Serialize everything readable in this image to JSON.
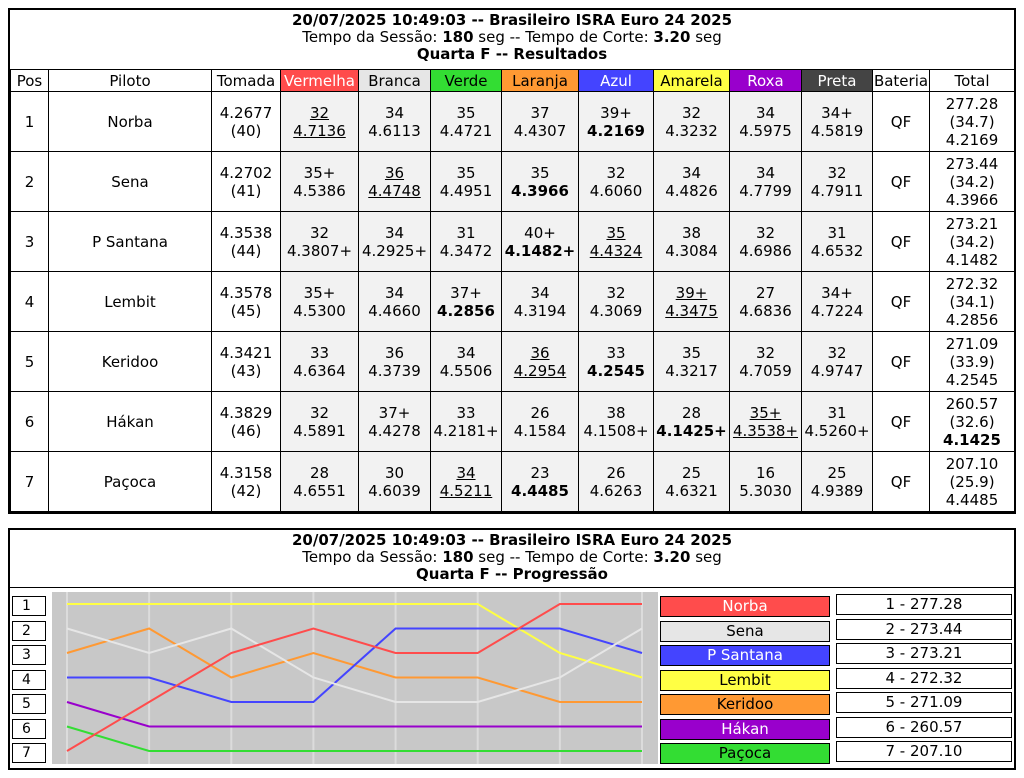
{
  "results": {
    "title": "20/07/2025 10:49:03 -- Brasileiro ISRA Euro 24 2025",
    "session_prefix": "Tempo da Sessão: ",
    "session_time": "180",
    "session_mid": " seg -- Tempo de Corte: ",
    "cut_time": "3.20",
    "session_suffix": " seg",
    "subtitle": "Quarta F -- Resultados",
    "columns": {
      "pos": "Pos",
      "pilot": "Piloto",
      "tomada": "Tomada",
      "vermelha": "Vermelha",
      "branca": "Branca",
      "verde": "Verde",
      "laranja": "Laranja",
      "azul": "Azul",
      "amarela": "Amarela",
      "roxa": "Roxa",
      "preta": "Preta",
      "bateria": "Bateria",
      "total": "Total"
    },
    "column_colors": {
      "vermelha": "#ff4c4c",
      "branca": "#e6e6e6",
      "verde": "#33dd33",
      "laranja": "#ff9933",
      "azul": "#4444ff",
      "amarela": "#ffff44",
      "roxa": "#9900cc",
      "preta": "#444444"
    },
    "rows": [
      {
        "pos": "1",
        "pilot": "Norba",
        "tomada": "4.2677",
        "tomada2": "(40)",
        "karts": [
          [
            "32",
            "4.7136",
            "u"
          ],
          [
            "34",
            "4.6113",
            ""
          ],
          [
            "35",
            "4.4721",
            ""
          ],
          [
            "37",
            "4.4307",
            ""
          ],
          [
            "39+",
            "4.2169",
            "b"
          ],
          [
            "32",
            "4.3232",
            ""
          ],
          [
            "34",
            "4.5975",
            ""
          ],
          [
            "34+",
            "4.5819",
            ""
          ]
        ],
        "bateria": "QF",
        "total": "277.28",
        "avg": "(34.7)",
        "best": "4.2169",
        "best_bold": false
      },
      {
        "pos": "2",
        "pilot": "Sena",
        "tomada": "4.2702",
        "tomada2": "(41)",
        "karts": [
          [
            "35+",
            "4.5386",
            ""
          ],
          [
            "36",
            "4.4748",
            "u"
          ],
          [
            "35",
            "4.4951",
            ""
          ],
          [
            "35",
            "4.3966",
            "b"
          ],
          [
            "32",
            "4.6060",
            ""
          ],
          [
            "34",
            "4.4826",
            ""
          ],
          [
            "34",
            "4.7799",
            ""
          ],
          [
            "32",
            "4.7911",
            ""
          ]
        ],
        "bateria": "QF",
        "total": "273.44",
        "avg": "(34.2)",
        "best": "4.3966",
        "best_bold": false
      },
      {
        "pos": "3",
        "pilot": "P Santana",
        "tomada": "4.3538",
        "tomada2": "(44)",
        "karts": [
          [
            "32",
            "4.3807+",
            ""
          ],
          [
            "34",
            "4.2925+",
            ""
          ],
          [
            "31",
            "4.3472",
            ""
          ],
          [
            "40+",
            "4.1482+",
            "b"
          ],
          [
            "35",
            "4.4324",
            "u"
          ],
          [
            "38",
            "4.3084",
            ""
          ],
          [
            "32",
            "4.6986",
            ""
          ],
          [
            "31",
            "4.6532",
            ""
          ]
        ],
        "bateria": "QF",
        "total": "273.21",
        "avg": "(34.2)",
        "best": "4.1482",
        "best_bold": false
      },
      {
        "pos": "4",
        "pilot": "Lembit",
        "tomada": "4.3578",
        "tomada2": "(45)",
        "karts": [
          [
            "35+",
            "4.5300",
            ""
          ],
          [
            "34",
            "4.4660",
            ""
          ],
          [
            "37+",
            "4.2856",
            "b"
          ],
          [
            "34",
            "4.3194",
            ""
          ],
          [
            "32",
            "4.3069",
            ""
          ],
          [
            "39+",
            "4.3475",
            "u"
          ],
          [
            "27",
            "4.6836",
            ""
          ],
          [
            "34+",
            "4.7224",
            ""
          ]
        ],
        "bateria": "QF",
        "total": "272.32",
        "avg": "(34.1)",
        "best": "4.2856",
        "best_bold": false
      },
      {
        "pos": "5",
        "pilot": "Keridoo",
        "tomada": "4.3421",
        "tomada2": "(43)",
        "karts": [
          [
            "33",
            "4.6364",
            ""
          ],
          [
            "36",
            "4.3739",
            ""
          ],
          [
            "34",
            "4.5506",
            ""
          ],
          [
            "36",
            "4.2954",
            "u"
          ],
          [
            "33",
            "4.2545",
            "b"
          ],
          [
            "35",
            "4.3217",
            ""
          ],
          [
            "32",
            "4.7059",
            ""
          ],
          [
            "32",
            "4.9747",
            ""
          ]
        ],
        "bateria": "QF",
        "total": "271.09",
        "avg": "(33.9)",
        "best": "4.2545",
        "best_bold": false
      },
      {
        "pos": "6",
        "pilot": "Hákan",
        "tomada": "4.3829",
        "tomada2": "(46)",
        "karts": [
          [
            "32",
            "4.5891",
            ""
          ],
          [
            "37+",
            "4.4278",
            ""
          ],
          [
            "33",
            "4.2181+",
            ""
          ],
          [
            "26",
            "4.1584",
            ""
          ],
          [
            "38",
            "4.1508+",
            ""
          ],
          [
            "28",
            "4.1425+",
            "b"
          ],
          [
            "35+",
            "4.3538+",
            "u"
          ],
          [
            "31",
            "4.5260+",
            ""
          ]
        ],
        "bateria": "QF",
        "total": "260.57",
        "avg": "(32.6)",
        "best": "4.1425",
        "best_bold": true
      },
      {
        "pos": "7",
        "pilot": "Paçoca",
        "tomada": "4.3158",
        "tomada2": "(42)",
        "karts": [
          [
            "28",
            "4.6551",
            ""
          ],
          [
            "30",
            "4.6039",
            ""
          ],
          [
            "34",
            "4.5211",
            "u"
          ],
          [
            "23",
            "4.4485",
            "b"
          ],
          [
            "26",
            "4.6263",
            ""
          ],
          [
            "25",
            "4.6321",
            ""
          ],
          [
            "16",
            "5.3030",
            ""
          ],
          [
            "25",
            "4.9389",
            ""
          ]
        ],
        "bateria": "QF",
        "total": "207.10",
        "avg": "(25.9)",
        "best": "4.4485",
        "best_bold": false
      }
    ]
  },
  "progression": {
    "title": "20/07/2025 10:49:03 -- Brasileiro ISRA Euro 24 2025",
    "session_prefix": "Tempo da Sessão: ",
    "session_time": "180",
    "session_mid": " seg -- Tempo de Corte: ",
    "cut_time": "3.20",
    "session_suffix": " seg",
    "subtitle": "Quarta F -- Progressão",
    "positions": [
      "1",
      "2",
      "3",
      "4",
      "5",
      "6",
      "7"
    ],
    "legend": [
      {
        "name": "Norba",
        "color": "#ff4c4c",
        "text_color": "#ffffff"
      },
      {
        "name": "Sena",
        "color": "#e6e6e6",
        "text_color": "#000000"
      },
      {
        "name": "P Santana",
        "color": "#4444ff",
        "text_color": "#ffffff"
      },
      {
        "name": "Lembit",
        "color": "#ffff44",
        "text_color": "#000000"
      },
      {
        "name": "Keridoo",
        "color": "#ff9933",
        "text_color": "#000000"
      },
      {
        "name": "Hákan",
        "color": "#9900cc",
        "text_color": "#ffffff"
      },
      {
        "name": "Paçoca",
        "color": "#33dd33",
        "text_color": "#000000"
      }
    ],
    "scores": [
      "1 - 277.28",
      "2 - 273.44",
      "3 - 273.21",
      "4 - 272.32",
      "5 - 271.09",
      "6 - 260.57",
      "7 - 207.10"
    ],
    "series": [
      {
        "name": "Norba",
        "color": "#ff4c4c",
        "positions": [
          7,
          5,
          3,
          2,
          3,
          3,
          1,
          1
        ]
      },
      {
        "name": "Sena",
        "color": "#e6e6e6",
        "positions": [
          2,
          3,
          2,
          4,
          5,
          5,
          4,
          2
        ]
      },
      {
        "name": "P Santana",
        "color": "#4444ff",
        "positions": [
          4,
          4,
          5,
          5,
          2,
          2,
          2,
          3
        ]
      },
      {
        "name": "Lembit",
        "color": "#ffff44",
        "positions": [
          1,
          1,
          1,
          1,
          1,
          1,
          3,
          4
        ]
      },
      {
        "name": "Keridoo",
        "color": "#ff9933",
        "positions": [
          3,
          2,
          4,
          3,
          4,
          4,
          5,
          5
        ]
      },
      {
        "name": "Hákan",
        "color": "#9900cc",
        "positions": [
          5,
          6,
          6,
          6,
          6,
          6,
          6,
          6
        ]
      },
      {
        "name": "Paçoca",
        "color": "#33dd33",
        "positions": [
          6,
          7,
          7,
          7,
          7,
          7,
          7,
          7
        ]
      }
    ]
  }
}
